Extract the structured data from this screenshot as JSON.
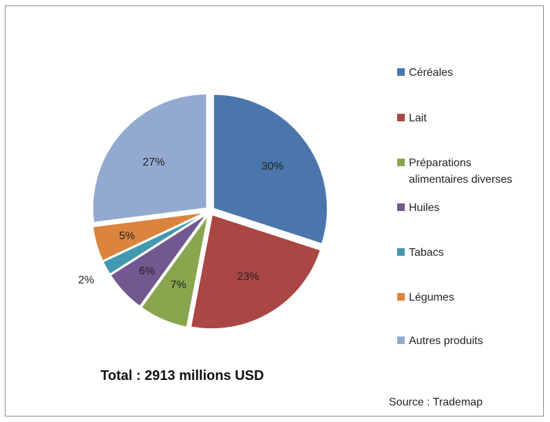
{
  "chart_data": {
    "type": "pie",
    "categories": [
      "Céréales",
      "Lait",
      "Préparations alimentaires diverses",
      "Huiles",
      "Tabacs",
      "Légumes",
      "Autres produits"
    ],
    "values": [
      30,
      23,
      7,
      6,
      2,
      5,
      27
    ],
    "labels": [
      "30%",
      "23%",
      "7%",
      "6%",
      "2%",
      "5%",
      "27%"
    ],
    "colors": [
      "#4a76ac",
      "#aa4643",
      "#89a54e",
      "#71588f",
      "#4198af",
      "#db843d",
      "#93a9cf"
    ],
    "legend_position": "right",
    "legend_labels": [
      "Céréales",
      "Lait",
      "Préparations\nalimentaires diverses",
      "Huiles",
      "Tabacs",
      "Légumes",
      "Autres produits"
    ],
    "annotations": {
      "total": "Total : 2913 millions USD",
      "source": "Source : Trademap"
    }
  }
}
